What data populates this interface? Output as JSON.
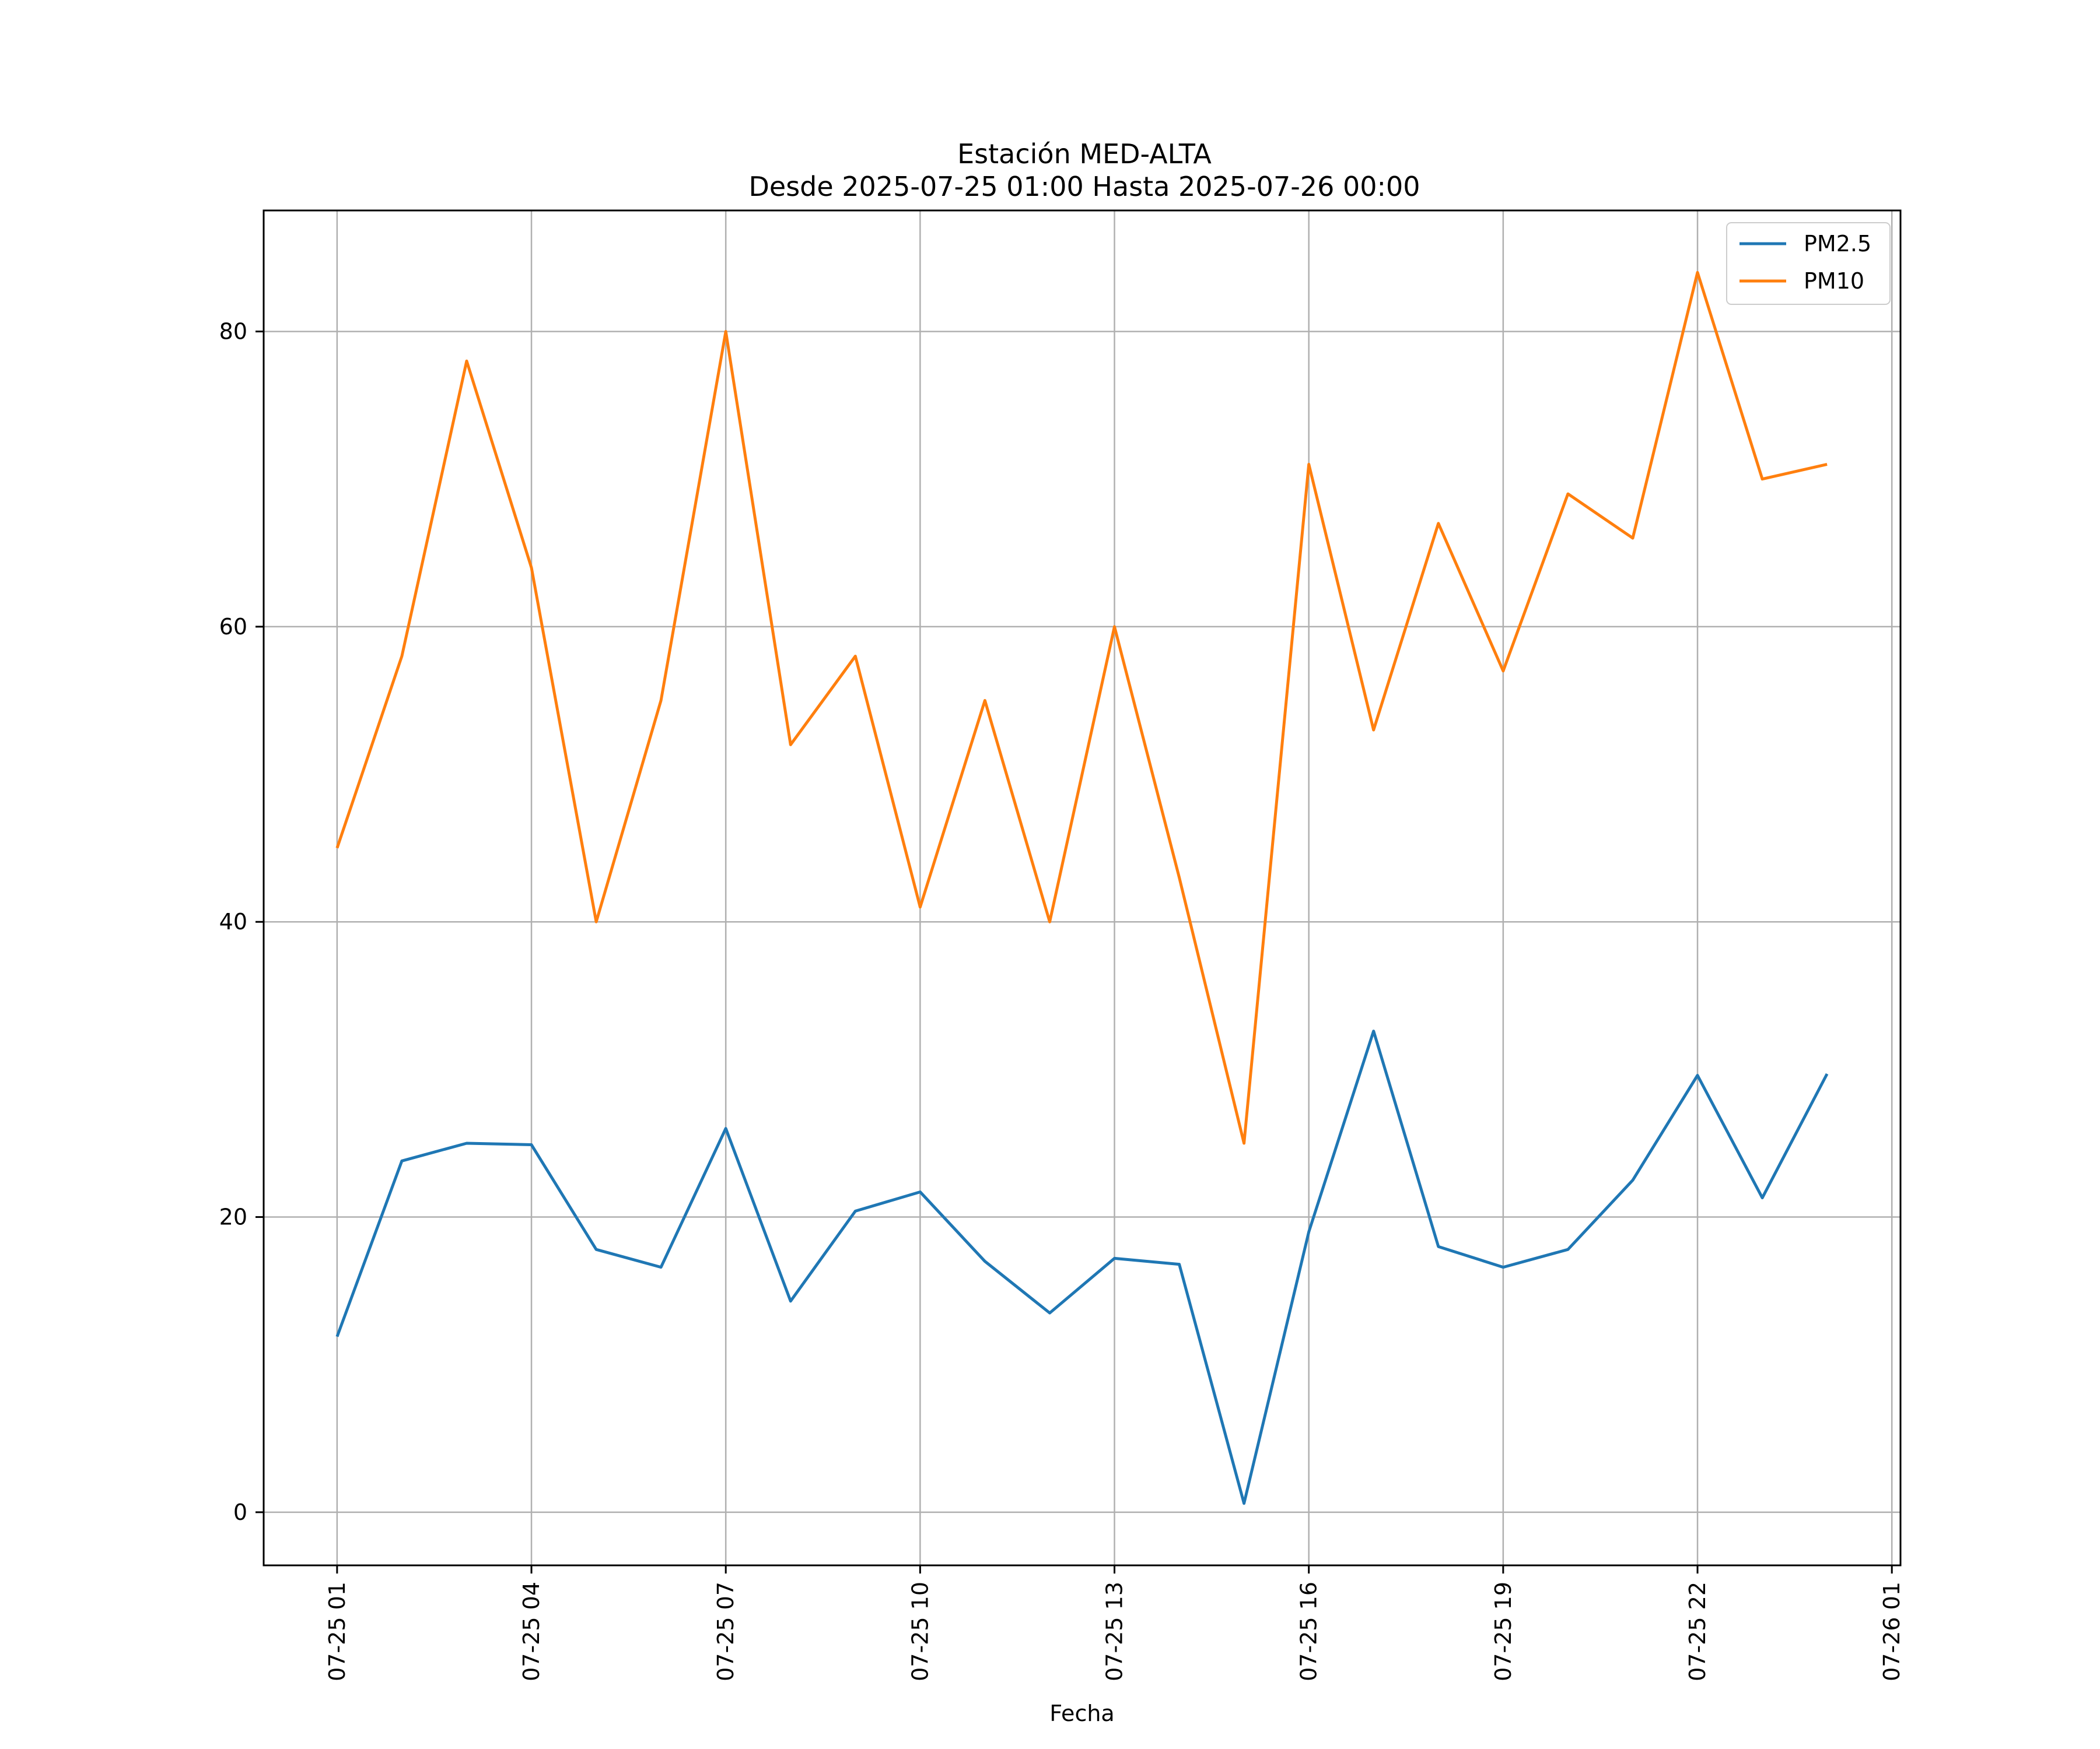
{
  "chart_data": {
    "type": "line",
    "title": "Estación MED-ALTA",
    "subtitle": "Desde 2025-07-25 01:00 Hasta 2025-07-26 00:00",
    "xlabel": "Fecha",
    "ylabel": "",
    "x": [
      "2025-07-25 01:00",
      "2025-07-25 02:00",
      "2025-07-25 03:00",
      "2025-07-25 04:00",
      "2025-07-25 05:00",
      "2025-07-25 06:00",
      "2025-07-25 07:00",
      "2025-07-25 08:00",
      "2025-07-25 09:00",
      "2025-07-25 10:00",
      "2025-07-25 11:00",
      "2025-07-25 12:00",
      "2025-07-25 13:00",
      "2025-07-25 14:00",
      "2025-07-25 15:00",
      "2025-07-25 16:00",
      "2025-07-25 17:00",
      "2025-07-25 18:00",
      "2025-07-25 19:00",
      "2025-07-25 20:00",
      "2025-07-25 21:00",
      "2025-07-25 22:00",
      "2025-07-25 23:00",
      "2025-07-26 00:00"
    ],
    "series": [
      {
        "name": "PM2.5",
        "color": "#1f77b4",
        "values": [
          11.9,
          23.8,
          25.0,
          24.9,
          17.8,
          16.6,
          26.0,
          14.3,
          20.4,
          21.7,
          17.0,
          13.5,
          17.2,
          16.8,
          0.6,
          19.0,
          32.6,
          18.0,
          16.6,
          17.8,
          22.5,
          29.6,
          21.3,
          29.7
        ]
      },
      {
        "name": "PM10",
        "color": "#ff7f0e",
        "values": [
          45,
          58,
          78,
          64,
          40,
          55,
          80,
          52,
          58,
          41,
          55,
          40,
          60,
          43,
          25,
          71,
          53,
          67,
          57,
          69,
          66,
          84,
          70,
          71
        ]
      }
    ],
    "x_tick_labels": [
      "07-25 01",
      "07-25 04",
      "07-25 07",
      "07-25 10",
      "07-25 13",
      "07-25 16",
      "07-25 19",
      "07-25 22",
      "07-26 01"
    ],
    "x_tick_values": [
      "2025-07-25 01:00",
      "2025-07-25 04:00",
      "2025-07-25 07:00",
      "2025-07-25 10:00",
      "2025-07-25 13:00",
      "2025-07-25 16:00",
      "2025-07-25 19:00",
      "2025-07-25 22:00",
      "2025-07-26 01:00"
    ],
    "y_ticks": [
      0,
      20,
      40,
      60,
      80
    ],
    "xlim": [
      "2025-07-24 23:52",
      "2025-07-26 01:08"
    ],
    "ylim": [
      -3.6,
      88.2
    ],
    "grid": true,
    "legend_position": "top-right"
  }
}
